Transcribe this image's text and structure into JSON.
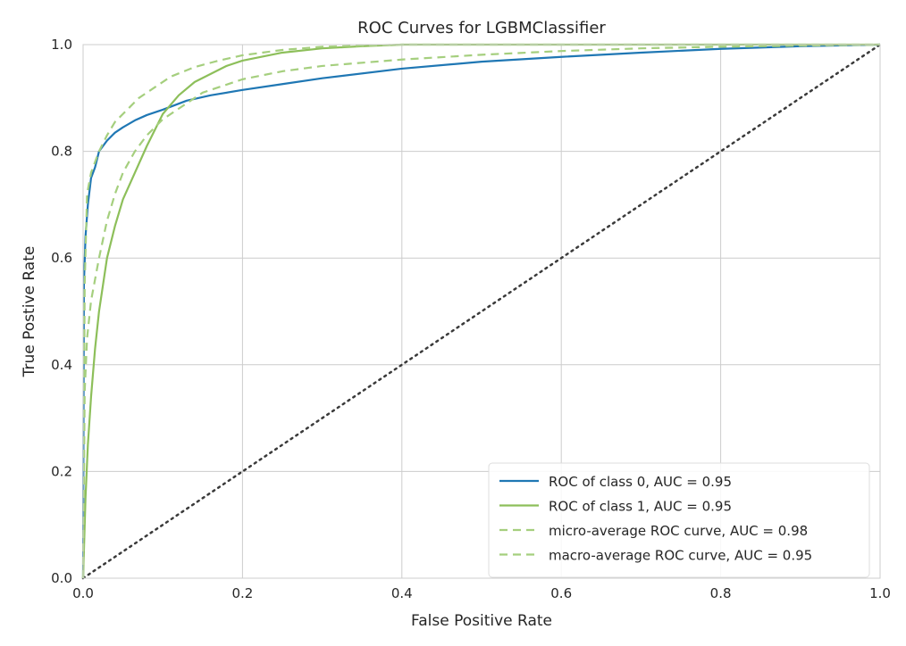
{
  "chart_data": {
    "type": "line",
    "title": "ROC Curves for LGBMClassifier",
    "xlabel": "False Positive Rate",
    "ylabel": "True Postive Rate",
    "xlim": [
      0.0,
      1.0
    ],
    "ylim": [
      0.0,
      1.0
    ],
    "xticks": [
      "0.0",
      "0.2",
      "0.4",
      "0.6",
      "0.8",
      "1.0"
    ],
    "yticks": [
      "0.0",
      "0.2",
      "0.4",
      "0.6",
      "0.8",
      "1.0"
    ],
    "grid": true,
    "legend_position": "lower-right",
    "series": [
      {
        "name": "ROC of class 0, AUC = 0.95",
        "color": "#1f77b4",
        "style": "solid",
        "x": [
          0,
          0.001,
          0.003,
          0.006,
          0.01,
          0.015,
          0.02,
          0.03,
          0.04,
          0.05,
          0.065,
          0.08,
          0.1,
          0.13,
          0.16,
          0.2,
          0.25,
          0.3,
          0.4,
          0.5,
          0.6,
          0.7,
          0.8,
          0.9,
          1.0
        ],
        "y": [
          0.0,
          0.55,
          0.64,
          0.7,
          0.75,
          0.77,
          0.8,
          0.82,
          0.835,
          0.845,
          0.858,
          0.868,
          0.878,
          0.895,
          0.905,
          0.915,
          0.926,
          0.937,
          0.955,
          0.968,
          0.977,
          0.985,
          0.992,
          0.997,
          1.0
        ]
      },
      {
        "name": "ROC of class 1, AUC = 0.95",
        "color": "#8dbf5a",
        "style": "solid",
        "x": [
          0,
          0.003,
          0.006,
          0.01,
          0.015,
          0.02,
          0.03,
          0.04,
          0.05,
          0.065,
          0.08,
          0.1,
          0.12,
          0.14,
          0.16,
          0.18,
          0.2,
          0.25,
          0.3,
          0.35,
          0.4,
          0.5,
          0.6,
          0.8,
          1.0
        ],
        "y": [
          0.0,
          0.15,
          0.25,
          0.34,
          0.43,
          0.5,
          0.6,
          0.66,
          0.71,
          0.76,
          0.81,
          0.87,
          0.905,
          0.93,
          0.945,
          0.96,
          0.97,
          0.985,
          0.993,
          0.997,
          1.0,
          1.0,
          1.0,
          1.0,
          1.0
        ]
      },
      {
        "name": "micro-average ROC curve, AUC = 0.98",
        "color": "#a5cf7e",
        "style": "dashed",
        "x": [
          0,
          0.002,
          0.005,
          0.01,
          0.015,
          0.02,
          0.03,
          0.04,
          0.05,
          0.07,
          0.09,
          0.11,
          0.14,
          0.17,
          0.2,
          0.25,
          0.3,
          0.35,
          0.4,
          0.5,
          0.6,
          0.8,
          1.0
        ],
        "y": [
          0.0,
          0.55,
          0.72,
          0.76,
          0.78,
          0.8,
          0.83,
          0.855,
          0.87,
          0.9,
          0.92,
          0.94,
          0.958,
          0.97,
          0.98,
          0.99,
          0.996,
          0.998,
          1.0,
          1.0,
          1.0,
          1.0,
          1.0
        ]
      },
      {
        "name": "macro-average ROC curve, AUC = 0.95",
        "color": "#a5cf7e",
        "style": "dashdot",
        "x": [
          0,
          0.002,
          0.005,
          0.01,
          0.02,
          0.03,
          0.04,
          0.05,
          0.065,
          0.08,
          0.1,
          0.12,
          0.15,
          0.2,
          0.25,
          0.3,
          0.4,
          0.5,
          0.6,
          0.7,
          0.8,
          0.9,
          1.0
        ],
        "y": [
          0.0,
          0.35,
          0.45,
          0.52,
          0.6,
          0.67,
          0.72,
          0.76,
          0.8,
          0.83,
          0.86,
          0.88,
          0.91,
          0.935,
          0.95,
          0.96,
          0.972,
          0.981,
          0.988,
          0.993,
          0.996,
          0.998,
          1.0
        ]
      },
      {
        "name": "",
        "color": "#3a3a3a",
        "style": "dotted",
        "x": [
          0,
          1
        ],
        "y": [
          0,
          1
        ]
      }
    ]
  }
}
